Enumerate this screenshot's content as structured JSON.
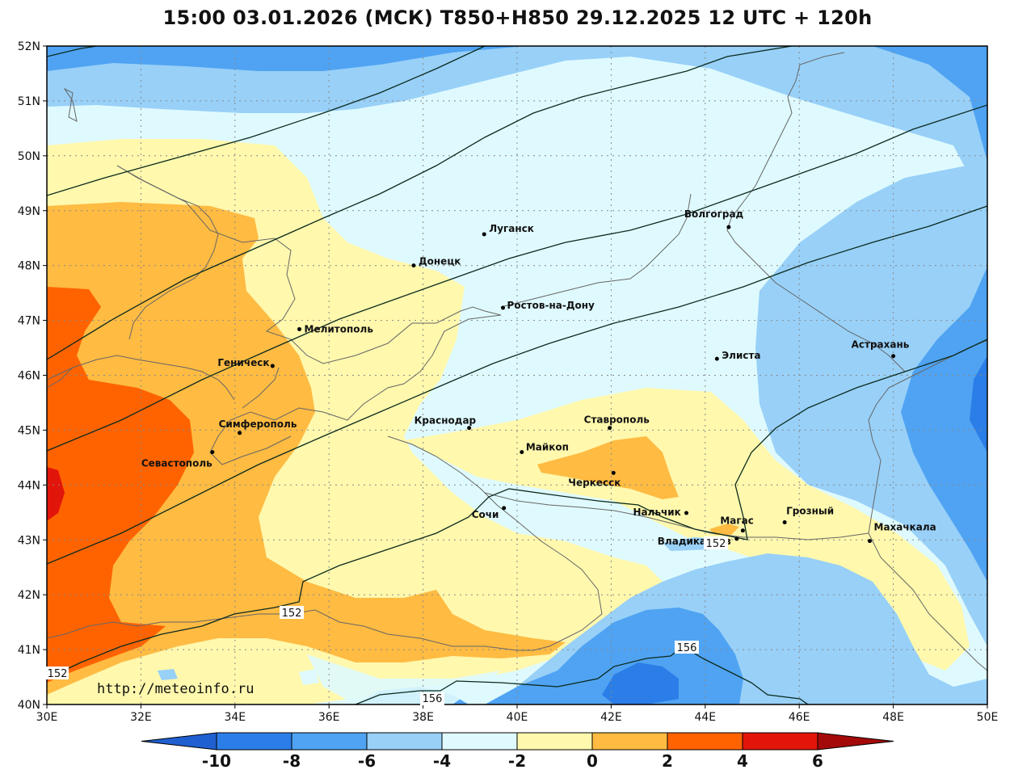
{
  "title": "15:00 03.01.2026 (МСК) T850+H850 29.12.2025 12 UTC + 120h",
  "watermark": "http://meteoinfo.ru",
  "lon_ticks": [
    "30E",
    "32E",
    "34E",
    "36E",
    "38E",
    "40E",
    "42E",
    "44E",
    "46E",
    "48E",
    "50E"
  ],
  "lat_ticks": [
    "52N",
    "51N",
    "50N",
    "49N",
    "48N",
    "47N",
    "46N",
    "45N",
    "44N",
    "43N",
    "42N",
    "41N",
    "40N"
  ],
  "extent": {
    "lon": [
      30,
      50
    ],
    "lat": [
      40,
      52
    ]
  },
  "cities": [
    {
      "name": "Луганск",
      "lon": 39.3,
      "lat": 48.57
    },
    {
      "name": "Донецк",
      "lon": 37.8,
      "lat": 48.0
    },
    {
      "name": "Волгоград",
      "lon": 44.5,
      "lat": 48.7
    },
    {
      "name": "Ростов-на-Дону",
      "lon": 39.7,
      "lat": 47.23
    },
    {
      "name": "Мелитополь",
      "lon": 35.37,
      "lat": 46.84
    },
    {
      "name": "Геническ",
      "lon": 34.8,
      "lat": 46.17
    },
    {
      "name": "Элиста",
      "lon": 44.25,
      "lat": 46.3
    },
    {
      "name": "Астрахань",
      "lon": 48.0,
      "lat": 46.35
    },
    {
      "name": "Краснодар",
      "lon": 38.98,
      "lat": 45.04
    },
    {
      "name": "Ставрополь",
      "lon": 41.97,
      "lat": 45.04
    },
    {
      "name": "Симферополь",
      "lon": 34.1,
      "lat": 44.95
    },
    {
      "name": "Майкоп",
      "lon": 40.1,
      "lat": 44.6
    },
    {
      "name": "Севастополь",
      "lon": 33.52,
      "lat": 44.6
    },
    {
      "name": "Черкесск",
      "lon": 42.05,
      "lat": 44.22
    },
    {
      "name": "Нальчик",
      "lon": 43.6,
      "lat": 43.49
    },
    {
      "name": "Магас",
      "lon": 44.8,
      "lat": 43.17
    },
    {
      "name": "Грозный",
      "lon": 45.69,
      "lat": 43.32
    },
    {
      "name": "Сочи",
      "lon": 39.72,
      "lat": 43.58
    },
    {
      "name": "Владикавказ",
      "lon": 44.67,
      "lat": 43.02
    },
    {
      "name": "Махачкала",
      "lon": 47.5,
      "lat": 42.98
    }
  ],
  "contour_labels": [
    "152",
    "152",
    "152",
    "156",
    "156"
  ],
  "colorbar": {
    "ticks": [
      "-10",
      "-8",
      "-6",
      "-4",
      "-2",
      "0",
      "2",
      "4",
      "6"
    ],
    "colors": [
      "#1f5fd0",
      "#2b7ee8",
      "#4fa3f2",
      "#98d0f8",
      "#dffafe",
      "#fff8ad",
      "#ffbb42",
      "#ff6300",
      "#e2150a",
      "#a50a0a"
    ]
  },
  "palette": {
    "t_m6_m4": "#4fa3f2",
    "t_m4_m2": "#98d0f8",
    "t_m2_0": "#dffafe",
    "t_0_2": "#fff8ad",
    "t_2_4": "#ffbb42",
    "t_4_6": "#ff6300",
    "t_6_8": "#e2150a",
    "t_m8_m6": "#2b7ee8",
    "t_m10_m8": "#1f5fd0"
  }
}
